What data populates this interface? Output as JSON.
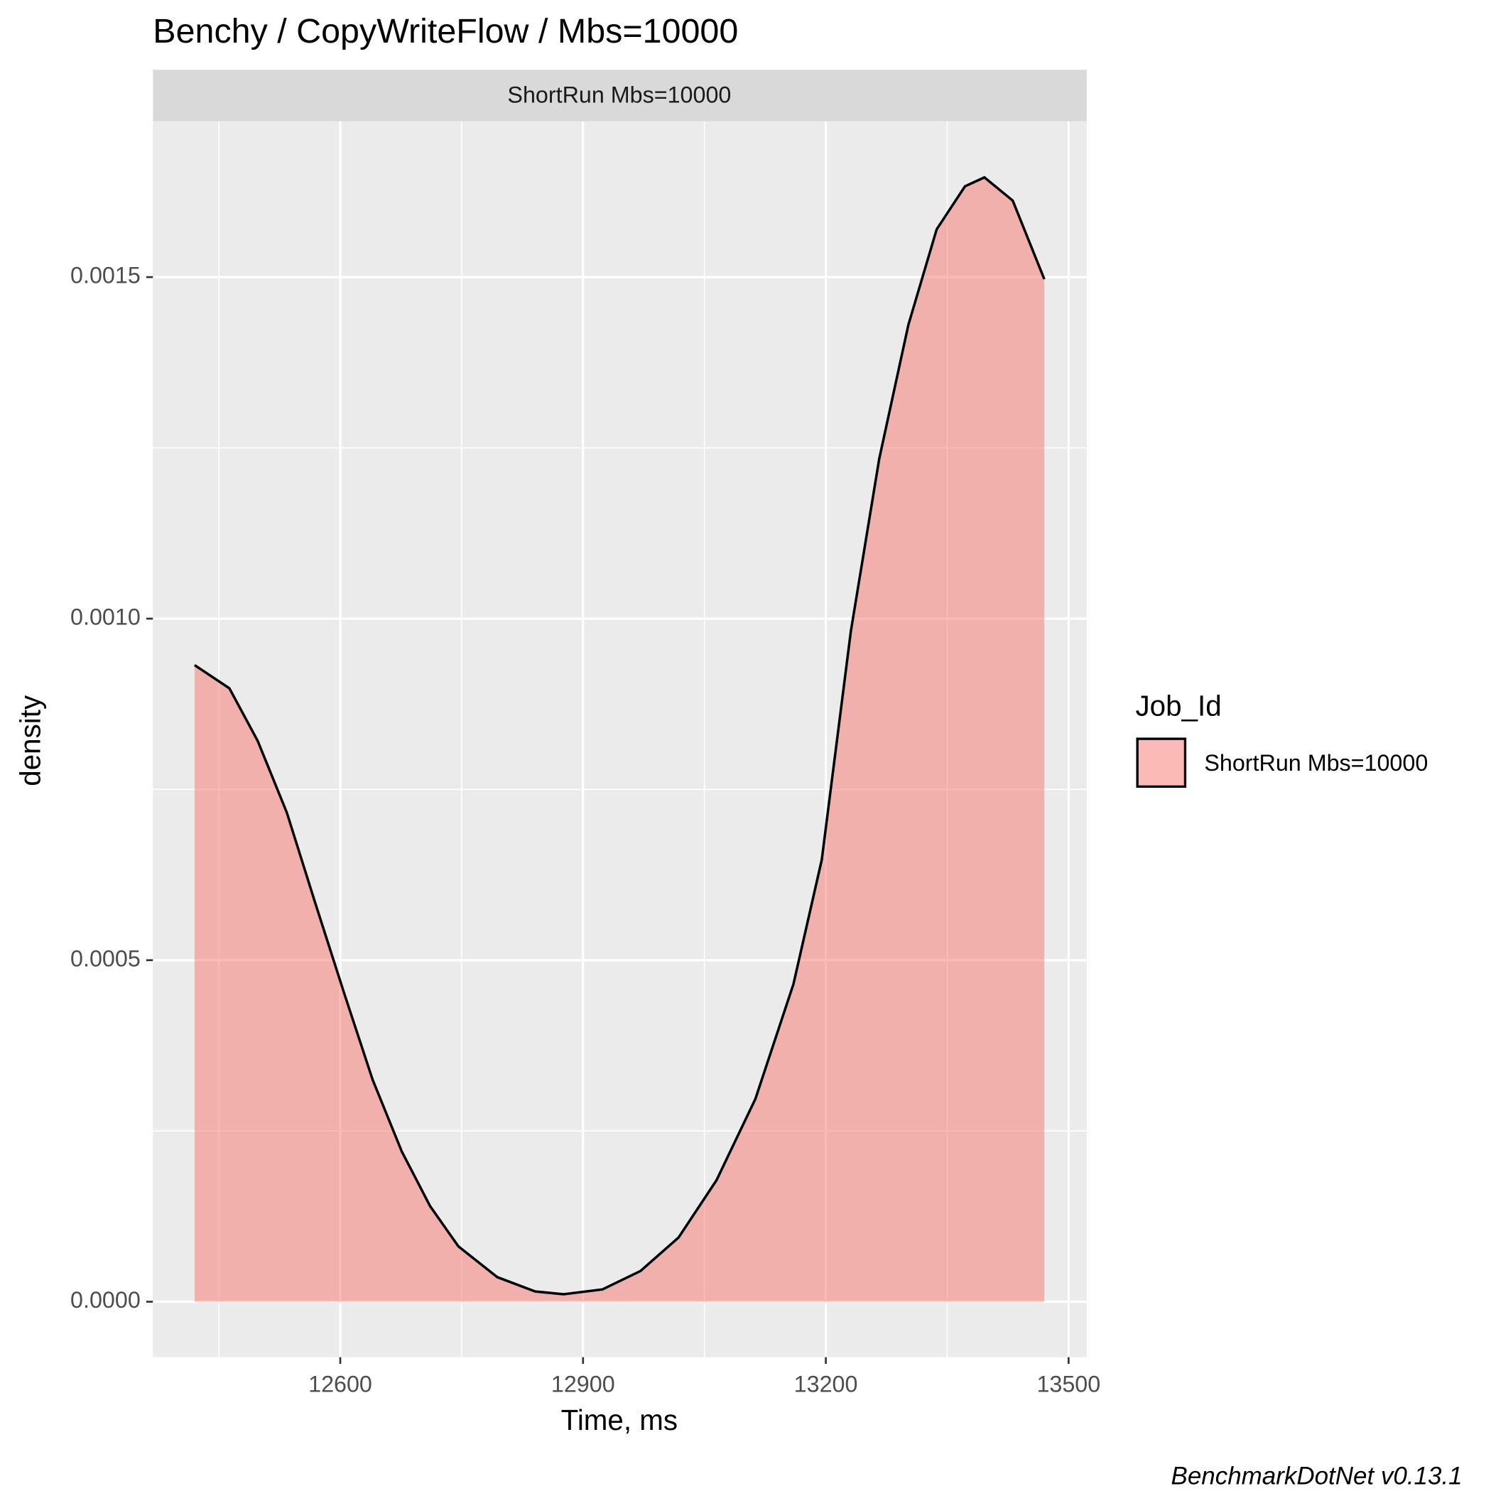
{
  "chart_data": {
    "type": "density",
    "title": "Benchy / CopyWriteFlow / Mbs=10000",
    "facet_label": "ShortRun Mbs=10000",
    "x_label": "Time, ms",
    "y_label": "density",
    "legend_title": "Job_Id",
    "legend_position": "right",
    "caption": "BenchmarkDotNet v0.13.1",
    "grid": true,
    "xlim": [
      12368.5,
      13522.4
    ],
    "ylim": [
      -8.12e-05,
      0.001728
    ],
    "xticks": [
      12600,
      12900,
      13200,
      13500
    ],
    "xminor": [
      12450,
      12750,
      13050,
      13350
    ],
    "yticks": [
      {
        "value": 0,
        "label": "0.0000"
      },
      {
        "value": 0.0005,
        "label": "0.0005"
      },
      {
        "value": 0.001,
        "label": "0.0010"
      },
      {
        "value": 0.0015,
        "label": "0.0015"
      }
    ],
    "yminor": [
      0.00025,
      0.00075,
      0.00125
    ],
    "x": [
      12420,
      12463,
      12498,
      12534,
      12569,
      12605,
      12640,
      12676,
      12711,
      12746,
      12794,
      12841,
      12876,
      12924,
      12971,
      13018,
      13065,
      13113,
      13160,
      13195,
      13231,
      13266,
      13302,
      13337,
      13372,
      13396,
      13431,
      13470
    ],
    "series": [
      {
        "name": "ShortRun Mbs=10000",
        "color": "#F8766D",
        "values": [
          0.000932,
          0.000898,
          0.000821,
          0.000716,
          0.000584,
          0.000451,
          0.000325,
          0.00022,
          0.00014,
          8.1e-05,
          3.6e-05,
          1.5e-05,
          1.1e-05,
          1.8e-05,
          4.5e-05,
          9.4e-05,
          0.000178,
          0.000297,
          0.000465,
          0.000647,
          0.000982,
          0.001234,
          0.00143,
          0.00157,
          0.001633,
          0.001646,
          0.001612,
          0.001497
        ]
      }
    ]
  }
}
